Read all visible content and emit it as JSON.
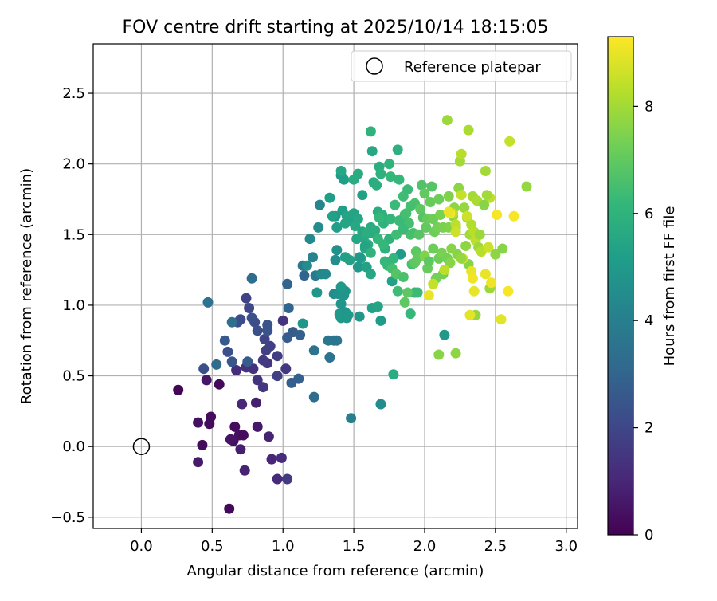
{
  "chart_data": {
    "type": "scatter",
    "title": "FOV centre drift starting at 2025/10/14 18:15:05",
    "xlabel": "Angular distance from reference (arcmin)",
    "ylabel": "Rotation from reference (arcmin)",
    "xlim": [
      -0.34,
      3.08
    ],
    "ylim": [
      -0.58,
      2.85
    ],
    "xticks": [
      0.0,
      0.5,
      1.0,
      1.5,
      2.0,
      2.5,
      3.0
    ],
    "xtick_labels": [
      "0.0",
      "0.5",
      "1.0",
      "1.5",
      "2.0",
      "2.5",
      "3.0"
    ],
    "yticks": [
      -0.5,
      0.0,
      0.5,
      1.0,
      1.5,
      2.0,
      2.5
    ],
    "ytick_labels": [
      "−0.5",
      "0.0",
      "0.5",
      "1.0",
      "1.5",
      "2.0",
      "2.5"
    ],
    "grid": true,
    "legend": {
      "position": "top-right",
      "entries": [
        "Reference platepar"
      ]
    },
    "reference": {
      "x": 0.0,
      "y": 0.0,
      "marker": "open-circle"
    },
    "colorbar": {
      "label": "Hours from first FF file",
      "colormap": "viridis",
      "range": [
        0,
        9.3
      ],
      "ticks": [
        0,
        2,
        4,
        6,
        8
      ],
      "tick_labels": [
        "0",
        "2",
        "4",
        "6",
        "8"
      ]
    },
    "colormap_stops": [
      "#440154",
      "#482878",
      "#3e4989",
      "#31688e",
      "#26828e",
      "#1f9e89",
      "#35b779",
      "#6ece58",
      "#b5de2b",
      "#fde725"
    ],
    "points": [
      [
        0.26,
        0.4,
        0.1
      ],
      [
        0.43,
        0.01,
        0.3
      ],
      [
        0.4,
        0.17,
        0.4
      ],
      [
        0.48,
        0.16,
        0.3
      ],
      [
        0.49,
        0.21,
        0.3
      ],
      [
        0.55,
        0.44,
        0.2
      ],
      [
        0.62,
        -0.44,
        0.2
      ],
      [
        0.66,
        0.14,
        0.3
      ],
      [
        0.69,
        0.08,
        0.4
      ],
      [
        0.72,
        0.08,
        0.3
      ],
      [
        0.65,
        0.04,
        0.4
      ],
      [
        0.63,
        0.05,
        0.5
      ],
      [
        0.46,
        0.47,
        0.6
      ],
      [
        0.4,
        -0.11,
        0.7
      ],
      [
        0.7,
        -0.02,
        0.8
      ],
      [
        0.73,
        -0.17,
        0.9
      ],
      [
        0.82,
        0.14,
        0.6
      ],
      [
        0.81,
        0.31,
        0.8
      ],
      [
        0.9,
        0.07,
        0.9
      ],
      [
        0.92,
        -0.09,
        1.0
      ],
      [
        0.96,
        -0.23,
        1.1
      ],
      [
        0.99,
        -0.08,
        1.2
      ],
      [
        1.03,
        -0.23,
        1.6
      ],
      [
        0.71,
        0.3,
        1.0
      ],
      [
        0.67,
        0.54,
        1.2
      ],
      [
        0.74,
        0.56,
        1.3
      ],
      [
        0.79,
        0.55,
        1.3
      ],
      [
        0.82,
        0.47,
        1.4
      ],
      [
        0.86,
        0.42,
        1.5
      ],
      [
        0.89,
        0.59,
        1.5
      ],
      [
        0.86,
        0.61,
        1.6
      ],
      [
        0.88,
        0.68,
        1.8
      ],
      [
        0.91,
        0.71,
        1.8
      ],
      [
        0.87,
        0.76,
        1.9
      ],
      [
        0.96,
        0.64,
        1.7
      ],
      [
        0.96,
        0.5,
        1.8
      ],
      [
        1.0,
        0.89,
        1.4
      ],
      [
        1.02,
        0.55,
        1.5
      ],
      [
        0.74,
        1.05,
        1.9
      ],
      [
        0.76,
        0.98,
        2.0
      ],
      [
        0.7,
        0.9,
        2.1
      ],
      [
        0.68,
        0.88,
        2.2
      ],
      [
        0.8,
        0.88,
        2.2
      ],
      [
        0.82,
        0.82,
        2.3
      ],
      [
        0.78,
        0.91,
        2.3
      ],
      [
        0.89,
        0.82,
        2.4
      ],
      [
        0.89,
        0.86,
        2.4
      ],
      [
        0.44,
        0.55,
        2.3
      ],
      [
        0.61,
        0.67,
        2.3
      ],
      [
        0.64,
        0.6,
        2.5
      ],
      [
        0.59,
        0.75,
        2.6
      ],
      [
        0.75,
        0.6,
        2.7
      ],
      [
        1.03,
        0.77,
        2.7
      ],
      [
        1.07,
        0.81,
        2.7
      ],
      [
        1.06,
        0.45,
        2.8
      ],
      [
        1.11,
        0.48,
        2.8
      ],
      [
        1.12,
        0.79,
        2.8
      ],
      [
        1.04,
        0.98,
        3.0
      ],
      [
        1.03,
        1.15,
        3.0
      ],
      [
        1.15,
        1.21,
        3.0
      ],
      [
        0.53,
        0.58,
        3.2
      ],
      [
        0.64,
        0.88,
        3.4
      ],
      [
        0.47,
        1.02,
        3.5
      ],
      [
        0.78,
        1.19,
        3.3
      ],
      [
        1.22,
        0.35,
        3.3
      ],
      [
        1.22,
        0.68,
        3.5
      ],
      [
        1.33,
        0.63,
        3.5
      ],
      [
        1.32,
        0.75,
        3.6
      ],
      [
        1.36,
        0.75,
        3.6
      ],
      [
        1.38,
        0.75,
        3.6
      ],
      [
        1.14,
        1.28,
        3.8
      ],
      [
        1.23,
        1.21,
        3.8
      ],
      [
        1.48,
        0.2,
        4.0
      ],
      [
        1.21,
        1.34,
        4.2
      ],
      [
        1.19,
        1.47,
        4.4
      ],
      [
        1.25,
        1.55,
        4.5
      ],
      [
        1.26,
        1.71,
        4.3
      ],
      [
        1.27,
        1.22,
        4.4
      ],
      [
        1.3,
        1.22,
        4.4
      ],
      [
        1.17,
        1.28,
        4.5
      ],
      [
        1.14,
        0.87,
        4.9
      ],
      [
        1.24,
        1.09,
        4.9
      ],
      [
        1.36,
        1.08,
        4.5
      ],
      [
        1.37,
        1.32,
        4.6
      ],
      [
        1.38,
        1.39,
        4.7
      ],
      [
        1.39,
        1.08,
        4.7
      ],
      [
        1.41,
        1.01,
        4.8
      ],
      [
        1.43,
        1.07,
        4.8
      ],
      [
        1.44,
        1.1,
        4.8
      ],
      [
        1.4,
        0.94,
        4.9
      ],
      [
        1.4,
        0.93,
        5.0
      ],
      [
        1.41,
        0.91,
        5.0
      ],
      [
        1.44,
        0.95,
        4.9
      ],
      [
        1.45,
        0.91,
        4.9
      ],
      [
        1.46,
        0.93,
        5.0
      ],
      [
        1.41,
        1.13,
        5.0
      ],
      [
        1.37,
        1.63,
        5.0
      ],
      [
        1.38,
        1.55,
        5.2
      ],
      [
        1.42,
        1.67,
        5.2
      ],
      [
        1.41,
        1.92,
        5.1
      ],
      [
        1.43,
        1.89,
        5.2
      ],
      [
        1.48,
        1.6,
        5.1
      ],
      [
        1.46,
        1.6,
        5.3
      ],
      [
        1.44,
        1.58,
        5.4
      ],
      [
        1.47,
        1.32,
        5.3
      ],
      [
        1.5,
        1.65,
        5.4
      ],
      [
        1.53,
        1.61,
        5.5
      ],
      [
        1.52,
        1.47,
        5.5
      ],
      [
        1.56,
        1.52,
        5.5
      ],
      [
        1.57,
        1.48,
        5.6
      ],
      [
        1.55,
        1.33,
        5.6
      ],
      [
        1.58,
        1.4,
        5.6
      ],
      [
        1.6,
        1.43,
        5.7
      ],
      [
        1.62,
        1.55,
        5.7
      ],
      [
        1.63,
        1.51,
        5.7
      ],
      [
        1.65,
        1.53,
        5.8
      ],
      [
        1.59,
        1.51,
        5.8
      ],
      [
        1.53,
        1.27,
        5.0
      ],
      [
        1.59,
        1.27,
        5.3
      ],
      [
        1.62,
        1.22,
        5.5
      ],
      [
        1.63,
        0.98,
        5.3
      ],
      [
        1.67,
        0.99,
        5.4
      ],
      [
        1.69,
        0.89,
        5.1
      ],
      [
        1.54,
        0.92,
        4.9
      ],
      [
        1.69,
        0.3,
        4.5
      ],
      [
        1.77,
        1.17,
        5.3
      ],
      [
        1.83,
        1.36,
        5.1
      ],
      [
        1.44,
        1.34,
        5.3
      ],
      [
        1.51,
        1.56,
        5.6
      ],
      [
        1.58,
        1.42,
        5.4
      ],
      [
        1.54,
        1.34,
        5.0
      ],
      [
        1.41,
        1.95,
        5.5
      ],
      [
        1.5,
        1.89,
        5.7
      ],
      [
        1.53,
        1.93,
        5.7
      ],
      [
        1.56,
        1.78,
        5.3
      ],
      [
        1.63,
        2.09,
        5.6
      ],
      [
        1.64,
        1.87,
        5.7
      ],
      [
        1.66,
        1.85,
        5.8
      ],
      [
        1.67,
        1.66,
        5.8
      ],
      [
        1.68,
        1.98,
        5.8
      ],
      [
        1.69,
        1.93,
        5.9
      ],
      [
        1.7,
        1.64,
        5.9
      ],
      [
        1.71,
        1.58,
        6.0
      ],
      [
        1.72,
        1.4,
        5.9
      ],
      [
        1.73,
        1.3,
        6.0
      ],
      [
        1.74,
        1.28,
        6.1
      ],
      [
        1.75,
        1.47,
        6.0
      ],
      [
        1.76,
        1.61,
        6.1
      ],
      [
        1.78,
        1.33,
        6.1
      ],
      [
        1.75,
        2.0,
        6.0
      ],
      [
        1.76,
        1.91,
        6.2
      ],
      [
        1.62,
        2.23,
        6.0
      ],
      [
        1.67,
        1.47,
        6.1
      ],
      [
        1.68,
        1.62,
        6.2
      ],
      [
        1.71,
        1.43,
        6.2
      ],
      [
        1.79,
        1.71,
        6.3
      ],
      [
        1.82,
        1.6,
        6.3
      ],
      [
        1.84,
        1.59,
        6.3
      ],
      [
        1.8,
        1.5,
        6.4
      ],
      [
        1.81,
        2.1,
        5.9
      ],
      [
        1.82,
        1.89,
        6.2
      ],
      [
        1.85,
        1.77,
        6.4
      ],
      [
        1.86,
        1.64,
        6.4
      ],
      [
        1.87,
        1.65,
        6.5
      ],
      [
        1.88,
        1.82,
        6.3
      ],
      [
        1.89,
        1.58,
        6.5
      ],
      [
        1.9,
        1.5,
        6.6
      ],
      [
        1.91,
        1.29,
        6.5
      ],
      [
        1.92,
        1.51,
        6.5
      ],
      [
        1.93,
        1.72,
        6.6
      ],
      [
        1.93,
        1.09,
        6.0
      ],
      [
        1.9,
        0.94,
        6.2
      ],
      [
        1.81,
        1.1,
        6.4
      ],
      [
        1.78,
        0.51,
        5.7
      ],
      [
        1.77,
        1.26,
        6.5
      ],
      [
        1.8,
        1.22,
        6.8
      ],
      [
        1.85,
        1.2,
        6.6
      ],
      [
        1.86,
        1.02,
        6.9
      ],
      [
        1.88,
        1.09,
        6.9
      ],
      [
        1.93,
        1.3,
        6.9
      ],
      [
        1.94,
        1.38,
        6.9
      ],
      [
        1.95,
        1.33,
        7.0
      ],
      [
        1.96,
        1.5,
        6.8
      ],
      [
        1.97,
        1.68,
        6.9
      ],
      [
        1.98,
        1.85,
        6.7
      ],
      [
        1.99,
        1.62,
        6.8
      ],
      [
        2.0,
        1.79,
        7.0
      ],
      [
        2.01,
        1.55,
        7.0
      ],
      [
        2.02,
        1.61,
        7.1
      ],
      [
        2.02,
        1.26,
        7.1
      ],
      [
        2.04,
        1.73,
        7.1
      ],
      [
        2.05,
        1.84,
        6.8
      ],
      [
        2.06,
        1.61,
        7.2
      ],
      [
        2.06,
        1.4,
        7.2
      ],
      [
        2.07,
        1.52,
        7.2
      ],
      [
        2.08,
        1.19,
        7.3
      ],
      [
        2.09,
        1.55,
        7.3
      ],
      [
        2.1,
        1.33,
        7.2
      ],
      [
        2.11,
        1.64,
        7.4
      ],
      [
        2.12,
        1.37,
        7.4
      ],
      [
        2.13,
        1.22,
        7.3
      ],
      [
        2.13,
        1.55,
        7.4
      ],
      [
        2.14,
        0.79,
        5.0
      ],
      [
        2.1,
        0.65,
        7.6
      ],
      [
        2.22,
        0.66,
        7.7
      ],
      [
        2.16,
        1.33,
        7.3
      ],
      [
        2.17,
        1.55,
        7.5
      ],
      [
        2.17,
        1.77,
        7.5
      ],
      [
        2.18,
        1.3,
        7.6
      ],
      [
        2.19,
        1.4,
        7.6
      ],
      [
        2.2,
        1.63,
        7.7
      ],
      [
        2.21,
        1.69,
        7.7
      ],
      [
        2.22,
        1.55,
        7.6
      ],
      [
        2.23,
        1.36,
        7.6
      ],
      [
        2.24,
        1.83,
        7.7
      ],
      [
        2.25,
        2.02,
        8.0
      ],
      [
        2.26,
        2.07,
        8.3
      ],
      [
        2.16,
        2.31,
        7.9
      ],
      [
        2.31,
        2.24,
        8.1
      ],
      [
        2.28,
        1.69,
        7.8
      ],
      [
        2.29,
        1.42,
        7.7
      ],
      [
        2.3,
        1.62,
        7.8
      ],
      [
        2.31,
        1.29,
        7.6
      ],
      [
        2.32,
        1.5,
        8.0
      ],
      [
        2.33,
        1.57,
        8.2
      ],
      [
        2.34,
        1.77,
        8.0
      ],
      [
        2.35,
        1.52,
        8.3
      ],
      [
        2.36,
        1.46,
        8.4
      ],
      [
        2.37,
        1.74,
        8.1
      ],
      [
        2.38,
        1.41,
        7.9
      ],
      [
        2.39,
        1.5,
        7.9
      ],
      [
        2.36,
        0.93,
        7.8
      ],
      [
        2.32,
        0.93,
        8.9
      ],
      [
        2.33,
        1.24,
        9.0
      ],
      [
        2.34,
        1.19,
        9.1
      ],
      [
        2.35,
        1.1,
        9.0
      ],
      [
        2.27,
        1.33,
        8.8
      ],
      [
        2.3,
        1.63,
        8.6
      ],
      [
        2.26,
        1.78,
        8.5
      ],
      [
        2.22,
        1.57,
        8.4
      ],
      [
        2.2,
        1.65,
        8.3
      ],
      [
        2.18,
        1.65,
        9.2
      ],
      [
        2.17,
        1.66,
        9.0
      ],
      [
        2.22,
        1.52,
        8.6
      ],
      [
        2.14,
        1.25,
        8.4
      ],
      [
        2.06,
        1.15,
        8.5
      ],
      [
        2.03,
        1.07,
        9.0
      ],
      [
        2.0,
        1.35,
        7.5
      ],
      [
        2.4,
        1.38,
        8.3
      ],
      [
        2.43,
        1.22,
        9.0
      ],
      [
        2.45,
        1.41,
        8.6
      ],
      [
        2.46,
        1.76,
        8.4
      ],
      [
        2.44,
        1.78,
        8.0
      ],
      [
        2.43,
        1.95,
        8.0
      ],
      [
        2.46,
        1.12,
        7.9
      ],
      [
        2.5,
        1.36,
        7.7
      ],
      [
        2.51,
        1.64,
        9.2
      ],
      [
        2.55,
        1.4,
        7.6
      ],
      [
        2.47,
        1.16,
        9.1
      ],
      [
        2.54,
        0.9,
        8.9
      ],
      [
        2.59,
        1.1,
        9.2
      ],
      [
        2.63,
        1.63,
        9.2
      ],
      [
        2.6,
        2.16,
        8.5
      ],
      [
        2.72,
        1.84,
        7.8
      ],
      [
        2.42,
        1.71,
        7.6
      ],
      [
        2.26,
        1.33,
        7.8
      ],
      [
        2.1,
        1.75,
        7.2
      ],
      [
        2.03,
        1.31,
        6.9
      ],
      [
        1.95,
        1.09,
        6.3
      ],
      [
        1.72,
        1.31,
        6.2
      ],
      [
        1.62,
        1.37,
        6.0
      ],
      [
        1.45,
        1.63,
        5.4
      ],
      [
        1.35,
        1.63,
        5.3
      ],
      [
        1.33,
        1.76,
        5.2
      ],
      [
        1.85,
        1.54,
        6.3
      ],
      [
        1.9,
        1.7,
        6.5
      ]
    ]
  }
}
